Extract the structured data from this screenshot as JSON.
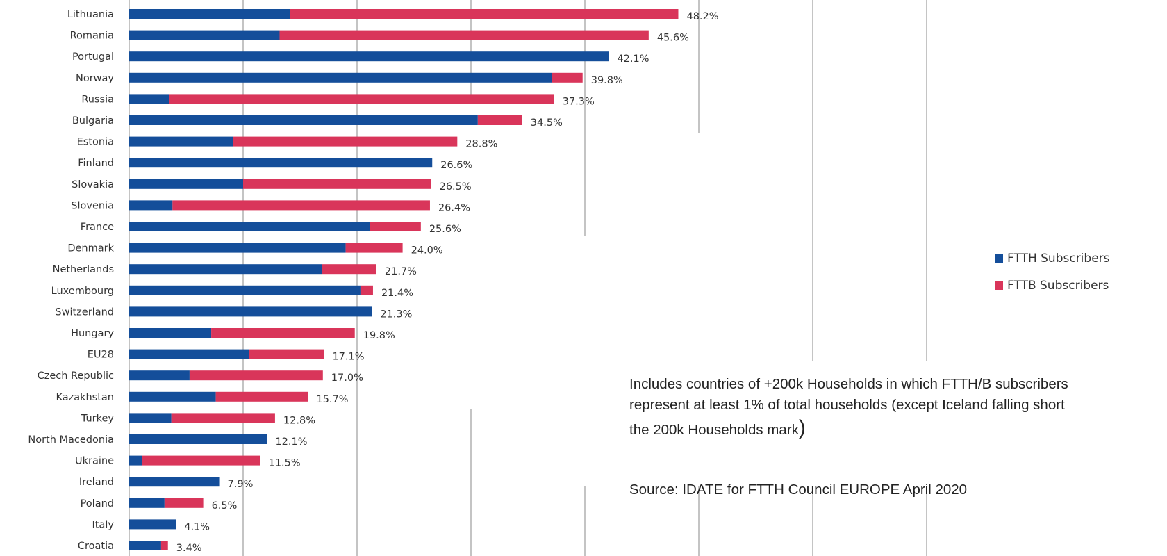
{
  "chart_data": {
    "type": "bar",
    "orientation": "horizontal",
    "stacked": true,
    "categories": [
      "Lithuania",
      "Romania",
      "Portugal",
      "Norway",
      "Russia",
      "Bulgaria",
      "Estonia",
      "Finland",
      "Slovakia",
      "Slovenia",
      "France",
      "Denmark",
      "Netherlands",
      "Luxembourg",
      "Switzerland",
      "Hungary",
      "EU28",
      "Czech Republic",
      "Kazakhstan",
      "Turkey",
      "North Macedonia",
      "Ukraine",
      "Ireland",
      "Poland",
      "Italy",
      "Croatia"
    ],
    "series": [
      {
        "name": "FTTH Subscribers",
        "color": "#144e9a",
        "values": [
          14.1,
          13.2,
          42.1,
          37.1,
          3.5,
          30.6,
          9.1,
          26.6,
          10.0,
          3.8,
          21.1,
          19.0,
          16.9,
          20.3,
          21.3,
          7.2,
          10.5,
          5.3,
          7.6,
          3.7,
          12.1,
          1.1,
          7.9,
          3.1,
          4.1,
          2.8
        ]
      },
      {
        "name": "FTTB Subscribers",
        "color": "#d9355a",
        "values": [
          34.1,
          32.4,
          0.0,
          2.7,
          33.8,
          3.9,
          19.7,
          0.0,
          16.5,
          22.6,
          4.5,
          5.0,
          4.8,
          1.1,
          0.0,
          12.6,
          6.6,
          11.7,
          8.1,
          9.1,
          0.0,
          10.4,
          0.0,
          3.4,
          0.0,
          0.6
        ]
      }
    ],
    "totals": [
      48.2,
      45.6,
      42.1,
      39.8,
      37.3,
      34.5,
      28.8,
      26.6,
      26.5,
      26.4,
      25.6,
      24.0,
      21.7,
      21.4,
      21.3,
      19.8,
      17.1,
      17.0,
      15.7,
      12.8,
      12.1,
      11.5,
      7.9,
      6.5,
      4.1,
      3.4
    ],
    "total_labels": [
      "48.2%",
      "45.6%",
      "42.1%",
      "39.8%",
      "37.3%",
      "34.5%",
      "28.8%",
      "26.6%",
      "26.5%",
      "26.4%",
      "25.6%",
      "24.0%",
      "21.7%",
      "21.4%",
      "21.3%",
      "19.8%",
      "17.1%",
      "17.0%",
      "15.7%",
      "12.8%",
      "12.1%",
      "11.5%",
      "7.9%",
      "6.5%",
      "4.1%",
      "3.4%"
    ],
    "xlim": [
      0,
      70
    ],
    "gridlines_x": [
      10,
      20,
      30,
      40,
      50,
      60,
      70
    ],
    "grid": true,
    "legend_position": "right",
    "unit": "%"
  },
  "legend": {
    "items": [
      {
        "label": "FTTH Subscribers",
        "color": "#144e9a"
      },
      {
        "label": "FTTB Subscribers",
        "color": "#d9355a"
      }
    ]
  },
  "note": {
    "line1": "Includes countries of +200k Households in which FTTH/B  subscribers",
    "line2": "represent at least 1% of total households  (except Iceland falling short",
    "line3": "the 200k Households  mark",
    "line3_paren": ")",
    "source": "Source:  IDATE for FTTH Council EUROPE  April 2020"
  }
}
